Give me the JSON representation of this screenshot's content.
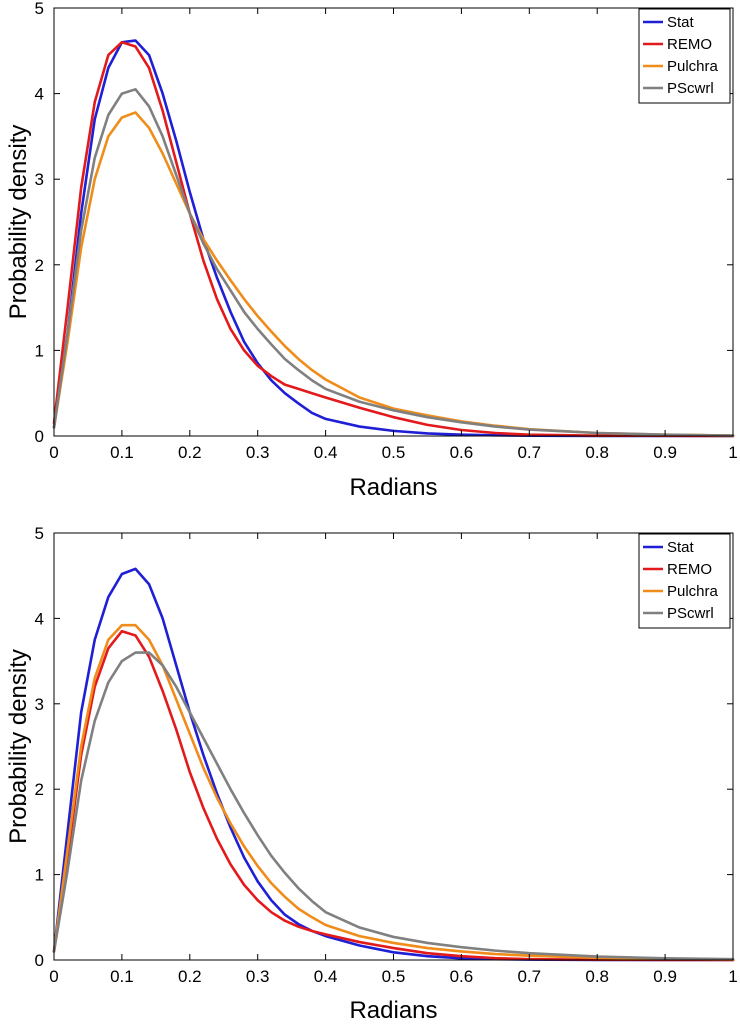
{
  "chart_data": [
    {
      "type": "line",
      "xlabel": "Radians",
      "ylabel": "Probability density",
      "xlim": [
        0,
        1
      ],
      "ylim": [
        0,
        5
      ],
      "xticks": [
        "0",
        "0.1",
        "0.2",
        "0.3",
        "0.4",
        "0.5",
        "0.6",
        "0.7",
        "0.8",
        "0.9",
        "1"
      ],
      "yticks": [
        "0",
        "1",
        "2",
        "3",
        "4",
        "5"
      ],
      "grid": false,
      "legend_position": "top-right",
      "series": [
        {
          "name": "Stat",
          "color": "#1f1fd6",
          "points": [
            [
              0,
              0.1
            ],
            [
              0.02,
              1.2
            ],
            [
              0.04,
              2.6
            ],
            [
              0.06,
              3.7
            ],
            [
              0.08,
              4.3
            ],
            [
              0.1,
              4.6
            ],
            [
              0.12,
              4.62
            ],
            [
              0.14,
              4.45
            ],
            [
              0.16,
              4.0
            ],
            [
              0.18,
              3.45
            ],
            [
              0.2,
              2.85
            ],
            [
              0.22,
              2.3
            ],
            [
              0.24,
              1.85
            ],
            [
              0.26,
              1.45
            ],
            [
              0.28,
              1.1
            ],
            [
              0.3,
              0.85
            ],
            [
              0.32,
              0.65
            ],
            [
              0.34,
              0.5
            ],
            [
              0.36,
              0.38
            ],
            [
              0.38,
              0.27
            ],
            [
              0.4,
              0.2
            ],
            [
              0.45,
              0.11
            ],
            [
              0.5,
              0.06
            ],
            [
              0.55,
              0.03
            ],
            [
              0.6,
              0.015
            ],
            [
              0.65,
              0.008
            ],
            [
              0.7,
              0.004
            ],
            [
              0.8,
              0.001
            ],
            [
              1.0,
              0.0
            ]
          ]
        },
        {
          "name": "REMO",
          "color": "#e31a1c",
          "points": [
            [
              0,
              0.15
            ],
            [
              0.02,
              1.5
            ],
            [
              0.04,
              2.9
            ],
            [
              0.06,
              3.9
            ],
            [
              0.08,
              4.45
            ],
            [
              0.1,
              4.6
            ],
            [
              0.12,
              4.55
            ],
            [
              0.14,
              4.3
            ],
            [
              0.16,
              3.8
            ],
            [
              0.18,
              3.2
            ],
            [
              0.2,
              2.6
            ],
            [
              0.22,
              2.05
            ],
            [
              0.24,
              1.6
            ],
            [
              0.26,
              1.25
            ],
            [
              0.28,
              1.0
            ],
            [
              0.3,
              0.82
            ],
            [
              0.32,
              0.7
            ],
            [
              0.34,
              0.6
            ],
            [
              0.36,
              0.55
            ],
            [
              0.38,
              0.5
            ],
            [
              0.4,
              0.45
            ],
            [
              0.45,
              0.33
            ],
            [
              0.5,
              0.22
            ],
            [
              0.55,
              0.13
            ],
            [
              0.6,
              0.07
            ],
            [
              0.65,
              0.035
            ],
            [
              0.7,
              0.015
            ],
            [
              0.8,
              0.004
            ],
            [
              1.0,
              0.0
            ]
          ]
        },
        {
          "name": "Pulchra",
          "color": "#f08c1a",
          "points": [
            [
              0,
              0.1
            ],
            [
              0.02,
              1.1
            ],
            [
              0.04,
              2.2
            ],
            [
              0.06,
              3.0
            ],
            [
              0.08,
              3.5
            ],
            [
              0.1,
              3.72
            ],
            [
              0.12,
              3.78
            ],
            [
              0.14,
              3.6
            ],
            [
              0.16,
              3.3
            ],
            [
              0.18,
              2.95
            ],
            [
              0.2,
              2.6
            ],
            [
              0.22,
              2.3
            ],
            [
              0.24,
              2.05
            ],
            [
              0.26,
              1.82
            ],
            [
              0.28,
              1.6
            ],
            [
              0.3,
              1.4
            ],
            [
              0.32,
              1.22
            ],
            [
              0.34,
              1.05
            ],
            [
              0.36,
              0.9
            ],
            [
              0.38,
              0.77
            ],
            [
              0.4,
              0.66
            ],
            [
              0.45,
              0.45
            ],
            [
              0.5,
              0.32
            ],
            [
              0.55,
              0.24
            ],
            [
              0.6,
              0.17
            ],
            [
              0.65,
              0.12
            ],
            [
              0.7,
              0.08
            ],
            [
              0.8,
              0.035
            ],
            [
              0.9,
              0.015
            ],
            [
              1.0,
              0.005
            ]
          ]
        },
        {
          "name": "PScwrl",
          "color": "#808080",
          "points": [
            [
              0,
              0.1
            ],
            [
              0.02,
              1.2
            ],
            [
              0.04,
              2.4
            ],
            [
              0.06,
              3.25
            ],
            [
              0.08,
              3.75
            ],
            [
              0.1,
              4.0
            ],
            [
              0.12,
              4.05
            ],
            [
              0.14,
              3.85
            ],
            [
              0.16,
              3.5
            ],
            [
              0.18,
              3.05
            ],
            [
              0.2,
              2.6
            ],
            [
              0.22,
              2.25
            ],
            [
              0.24,
              1.95
            ],
            [
              0.26,
              1.7
            ],
            [
              0.28,
              1.45
            ],
            [
              0.3,
              1.25
            ],
            [
              0.32,
              1.07
            ],
            [
              0.34,
              0.9
            ],
            [
              0.36,
              0.77
            ],
            [
              0.38,
              0.65
            ],
            [
              0.4,
              0.55
            ],
            [
              0.45,
              0.4
            ],
            [
              0.5,
              0.3
            ],
            [
              0.55,
              0.22
            ],
            [
              0.6,
              0.16
            ],
            [
              0.65,
              0.11
            ],
            [
              0.7,
              0.075
            ],
            [
              0.8,
              0.035
            ],
            [
              0.9,
              0.015
            ],
            [
              1.0,
              0.005
            ]
          ]
        }
      ]
    },
    {
      "type": "line",
      "xlabel": "Radians",
      "ylabel": "Probability density",
      "xlim": [
        0,
        1
      ],
      "ylim": [
        0,
        5
      ],
      "xticks": [
        "0",
        "0.1",
        "0.2",
        "0.3",
        "0.4",
        "0.5",
        "0.6",
        "0.7",
        "0.8",
        "0.9",
        "1"
      ],
      "yticks": [
        "0",
        "1",
        "2",
        "3",
        "4",
        "5"
      ],
      "grid": false,
      "legend_position": "top-right",
      "series": [
        {
          "name": "Stat",
          "color": "#1f1fd6",
          "points": [
            [
              0,
              0.1
            ],
            [
              0.02,
              1.5
            ],
            [
              0.04,
              2.9
            ],
            [
              0.06,
              3.75
            ],
            [
              0.08,
              4.25
            ],
            [
              0.1,
              4.52
            ],
            [
              0.12,
              4.58
            ],
            [
              0.14,
              4.4
            ],
            [
              0.16,
              4.0
            ],
            [
              0.18,
              3.45
            ],
            [
              0.2,
              2.9
            ],
            [
              0.22,
              2.4
            ],
            [
              0.24,
              1.95
            ],
            [
              0.26,
              1.55
            ],
            [
              0.28,
              1.2
            ],
            [
              0.3,
              0.92
            ],
            [
              0.32,
              0.7
            ],
            [
              0.34,
              0.53
            ],
            [
              0.36,
              0.42
            ],
            [
              0.38,
              0.34
            ],
            [
              0.4,
              0.28
            ],
            [
              0.45,
              0.17
            ],
            [
              0.5,
              0.09
            ],
            [
              0.55,
              0.045
            ],
            [
              0.6,
              0.02
            ],
            [
              0.65,
              0.01
            ],
            [
              0.7,
              0.005
            ],
            [
              0.8,
              0.001
            ],
            [
              1.0,
              0.0
            ]
          ]
        },
        {
          "name": "REMO",
          "color": "#e31a1c",
          "points": [
            [
              0,
              0.1
            ],
            [
              0.02,
              1.2
            ],
            [
              0.04,
              2.4
            ],
            [
              0.06,
              3.2
            ],
            [
              0.08,
              3.65
            ],
            [
              0.1,
              3.85
            ],
            [
              0.12,
              3.8
            ],
            [
              0.14,
              3.55
            ],
            [
              0.16,
              3.15
            ],
            [
              0.18,
              2.7
            ],
            [
              0.2,
              2.2
            ],
            [
              0.22,
              1.78
            ],
            [
              0.24,
              1.42
            ],
            [
              0.26,
              1.12
            ],
            [
              0.28,
              0.88
            ],
            [
              0.3,
              0.7
            ],
            [
              0.32,
              0.56
            ],
            [
              0.34,
              0.46
            ],
            [
              0.36,
              0.39
            ],
            [
              0.38,
              0.34
            ],
            [
              0.4,
              0.3
            ],
            [
              0.45,
              0.21
            ],
            [
              0.5,
              0.14
            ],
            [
              0.55,
              0.08
            ],
            [
              0.6,
              0.045
            ],
            [
              0.65,
              0.022
            ],
            [
              0.7,
              0.01
            ],
            [
              0.8,
              0.003
            ],
            [
              1.0,
              0.0
            ]
          ]
        },
        {
          "name": "Pulchra",
          "color": "#f08c1a",
          "points": [
            [
              0,
              0.1
            ],
            [
              0.02,
              1.3
            ],
            [
              0.04,
              2.5
            ],
            [
              0.06,
              3.3
            ],
            [
              0.08,
              3.75
            ],
            [
              0.1,
              3.92
            ],
            [
              0.12,
              3.92
            ],
            [
              0.14,
              3.75
            ],
            [
              0.16,
              3.45
            ],
            [
              0.18,
              3.05
            ],
            [
              0.2,
              2.65
            ],
            [
              0.22,
              2.25
            ],
            [
              0.24,
              1.9
            ],
            [
              0.26,
              1.6
            ],
            [
              0.28,
              1.33
            ],
            [
              0.3,
              1.1
            ],
            [
              0.32,
              0.9
            ],
            [
              0.34,
              0.74
            ],
            [
              0.36,
              0.6
            ],
            [
              0.38,
              0.5
            ],
            [
              0.4,
              0.41
            ],
            [
              0.45,
              0.28
            ],
            [
              0.5,
              0.2
            ],
            [
              0.55,
              0.14
            ],
            [
              0.6,
              0.1
            ],
            [
              0.65,
              0.07
            ],
            [
              0.7,
              0.05
            ],
            [
              0.8,
              0.025
            ],
            [
              0.9,
              0.012
            ],
            [
              1.0,
              0.005
            ]
          ]
        },
        {
          "name": "PScwrl",
          "color": "#808080",
          "points": [
            [
              0,
              0.1
            ],
            [
              0.02,
              1.05
            ],
            [
              0.04,
              2.1
            ],
            [
              0.06,
              2.8
            ],
            [
              0.08,
              3.25
            ],
            [
              0.1,
              3.5
            ],
            [
              0.12,
              3.6
            ],
            [
              0.14,
              3.6
            ],
            [
              0.16,
              3.45
            ],
            [
              0.18,
              3.2
            ],
            [
              0.2,
              2.9
            ],
            [
              0.22,
              2.6
            ],
            [
              0.24,
              2.3
            ],
            [
              0.26,
              2.0
            ],
            [
              0.28,
              1.72
            ],
            [
              0.3,
              1.46
            ],
            [
              0.32,
              1.22
            ],
            [
              0.34,
              1.02
            ],
            [
              0.36,
              0.84
            ],
            [
              0.38,
              0.69
            ],
            [
              0.4,
              0.56
            ],
            [
              0.45,
              0.38
            ],
            [
              0.5,
              0.27
            ],
            [
              0.55,
              0.2
            ],
            [
              0.6,
              0.15
            ],
            [
              0.65,
              0.11
            ],
            [
              0.7,
              0.08
            ],
            [
              0.8,
              0.04
            ],
            [
              0.9,
              0.02
            ],
            [
              1.0,
              0.01
            ]
          ]
        }
      ]
    }
  ]
}
